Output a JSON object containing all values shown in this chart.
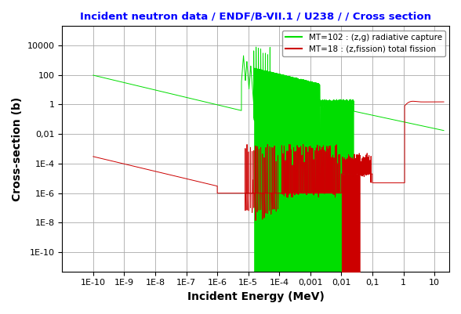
{
  "title": "Incident neutron data / ENDF/B-VII.1 / U238 / / Cross section",
  "title_color": "#0000FF",
  "xlabel": "Incident Energy (MeV)",
  "ylabel": "Cross-section (b)",
  "background_color": "#FFFFFF",
  "plot_bg_color": "#FFFFFF",
  "grid_color": "#AAAAAA",
  "legend_label_green": "MT=102 : (z,g) radiative capture",
  "legend_label_red": "MT=18 : (z,fission) total fission",
  "green_color": "#00DD00",
  "red_color": "#CC0000",
  "xtick_labels": [
    "1E-10",
    "1E-9",
    "1E-8",
    "1E-7",
    "1E-6",
    "1E-5",
    "1E-4",
    "0,001",
    "0,01",
    "0,1",
    "1",
    "10"
  ],
  "xtick_vals": [
    1e-10,
    1e-09,
    1e-08,
    1e-07,
    1e-06,
    1e-05,
    0.0001,
    0.001,
    0.01,
    0.1,
    1,
    10
  ],
  "ytick_labels": [
    "1E-10",
    "1E-8",
    "1E-6",
    "1E-4",
    "0,01",
    "1",
    "100",
    "10000"
  ],
  "ytick_vals": [
    1e-10,
    1e-08,
    1e-06,
    0.0001,
    0.01,
    1,
    100,
    10000
  ]
}
